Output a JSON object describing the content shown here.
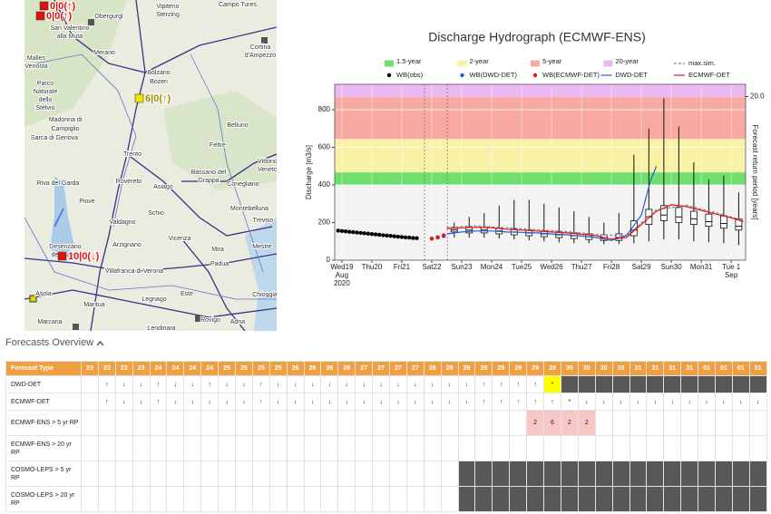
{
  "map": {
    "labels": [
      "Obergurgl",
      "Vipiteno",
      "Sterzing",
      "Campo Tures",
      "San Valentino",
      "alla Muta",
      "Malles",
      "Venosta",
      "Merano",
      "Bolzano",
      "Bozen",
      "Cortina",
      "d'Ampezzo",
      "Parco",
      "Naturale",
      "dello",
      "Stelvio",
      "Madonna di",
      "Campiglio",
      "Sarca di Genova",
      "Trento",
      "Riva del Garda",
      "Rovereto",
      "Asiago",
      "Bassano del",
      "Grappa",
      "Feltre",
      "Belluno",
      "Vittorio",
      "Veneto",
      "Conegliano",
      "Montebelluna",
      "Treviso",
      "Schio",
      "Valdagno",
      "Arzignano",
      "Vicenza",
      "Desenzano",
      "del Garda",
      "Mestre",
      "Mira",
      "Padua",
      "Villafranca di Verona",
      "Mantua",
      "Legnago",
      "Este",
      "Rovigo",
      "Chioggia",
      "Adria",
      "Asola",
      "Marcaria",
      "Lendinara",
      "Piove"
    ],
    "stations": [
      {
        "label": "0|0(↑)",
        "color": "#e01010"
      },
      {
        "label": "0|0(↑)",
        "color": "#e01010"
      },
      {
        "label": "6|0(↑)",
        "color": "#f2e200"
      },
      {
        "label": "10|0(↓)",
        "color": "#e01010"
      }
    ]
  },
  "chart_data": {
    "type": "hydrograph",
    "title": "Discharge Hydrograph (ECMWF-ENS)",
    "y_label": "Discharge [m3/s]",
    "y2_label": "Forecast return period [years]",
    "xlim": [
      18.76,
      32.48
    ],
    "ylim": [
      0,
      935
    ],
    "yticks": [
      0,
      200,
      400,
      600,
      800
    ],
    "return_period_marks": [
      {
        "value": 870,
        "label": "20.0"
      }
    ],
    "grid": true,
    "xticks": [
      {
        "value": 19,
        "label": "Wed19"
      },
      {
        "value": 20,
        "label": "Thu20"
      },
      {
        "value": 21,
        "label": "Fri21"
      },
      {
        "value": 22,
        "label": "Sat22"
      },
      {
        "value": 23,
        "label": "Sun23"
      },
      {
        "value": 24,
        "label": "Mon24"
      },
      {
        "value": 25,
        "label": "Tue25"
      },
      {
        "value": 26,
        "label": "Wed26"
      },
      {
        "value": 27,
        "label": "Thu27"
      },
      {
        "value": 28,
        "label": "Fri28"
      },
      {
        "value": 29,
        "label": "Sat29"
      },
      {
        "value": 30,
        "label": "Sun30"
      },
      {
        "value": 31,
        "label": "Mon31"
      },
      {
        "value": 32,
        "label": "Tue 1"
      }
    ],
    "x_sublabels": {
      "first": [
        "Aug",
        "2020"
      ],
      "last": [
        "Sep"
      ]
    },
    "vlines": [
      21.76,
      22.52
    ],
    "bands": [
      {
        "name": "1.5-year",
        "color": "#6fe06f",
        "from": 400,
        "to": 467
      },
      {
        "name": "2-year",
        "color": "#f9f1a6",
        "from": 467,
        "to": 645
      },
      {
        "name": "5-year",
        "color": "#f8aaa2",
        "from": 645,
        "to": 867
      },
      {
        "name": "20-year",
        "color": "#ebb8f2",
        "from": 867,
        "to": 935
      }
    ],
    "series": [
      {
        "name": "max.sim.",
        "color": "#888888",
        "style": "dashed",
        "x": [
          22.5,
          23.5,
          24.5,
          25.5,
          26.5,
          27.5,
          28.5,
          29.5,
          30.5,
          31.5,
          32.4
        ],
        "values": [
          175,
          182,
          172,
          162,
          152,
          137,
          128,
          268,
          292,
          252,
          212
        ]
      },
      {
        "name": "WB(obs)",
        "color": "#000000",
        "style": "dots",
        "x": [
          18.875,
          19,
          19.125,
          19.25,
          19.375,
          19.5,
          19.625,
          19.75,
          19.875,
          20,
          20.125,
          20.25,
          20.375,
          20.5,
          20.625,
          20.75,
          20.875,
          21,
          21.125,
          21.25,
          21.375,
          21.5
        ],
        "values": [
          157,
          155,
          153,
          151,
          149,
          147,
          145,
          143,
          141,
          139,
          137,
          135,
          133,
          131,
          129,
          127,
          125,
          123,
          121,
          120,
          118,
          117
        ]
      },
      {
        "name": "WB(DWD-DET)",
        "color": "#2a5bd7",
        "style": "dots",
        "x": [
          22.0,
          22.2,
          22.4
        ],
        "values": [
          114,
          120,
          128
        ]
      },
      {
        "name": "WB(ECMWF-DET)",
        "color": "#e01818",
        "style": "dots",
        "x": [
          22.0,
          22.2,
          22.4
        ],
        "values": [
          115,
          122,
          132
        ]
      },
      {
        "name": "DWD-DET",
        "color": "#2a5bd7",
        "style": "line",
        "x": [
          22.5,
          23,
          23.5,
          24,
          24.5,
          25,
          25.5,
          26,
          26.5,
          27,
          27.5,
          28,
          28.5,
          29,
          29.3,
          29.5
        ],
        "values": [
          140,
          150,
          155,
          155,
          150,
          148,
          145,
          140,
          135,
          128,
          120,
          105,
          130,
          240,
          420,
          500
        ]
      },
      {
        "name": "ECMWF-DET",
        "color": "#e01818",
        "style": "line",
        "x": [
          22.5,
          23,
          23.5,
          24,
          24.5,
          25,
          25.5,
          26,
          26.5,
          27,
          27.5,
          28,
          28.5,
          29,
          29.5,
          30,
          30.5,
          31,
          31.5,
          32,
          32.4
        ],
        "values": [
          168,
          172,
          175,
          172,
          165,
          160,
          155,
          150,
          145,
          138,
          130,
          112,
          120,
          190,
          260,
          295,
          285,
          265,
          245,
          225,
          205
        ]
      }
    ],
    "ensemble": {
      "x": [
        22.75,
        23.25,
        23.75,
        24.25,
        24.75,
        25.25,
        25.75,
        26.25,
        26.75,
        27.25,
        27.75,
        28.25,
        28.75,
        29.25,
        29.75,
        30.25,
        30.75,
        31.25,
        31.75,
        32.25
      ],
      "low": [
        120,
        120,
        120,
        115,
        110,
        105,
        100,
        95,
        90,
        90,
        85,
        85,
        90,
        100,
        110,
        110,
        100,
        95,
        90,
        80
      ],
      "q1": [
        150,
        145,
        145,
        140,
        135,
        130,
        125,
        120,
        115,
        110,
        105,
        105,
        130,
        190,
        210,
        200,
        190,
        180,
        170,
        160
      ],
      "median": [
        160,
        160,
        160,
        155,
        150,
        145,
        140,
        135,
        130,
        125,
        120,
        120,
        160,
        230,
        240,
        230,
        220,
        205,
        195,
        180
      ],
      "q3": [
        170,
        175,
        175,
        170,
        165,
        160,
        155,
        150,
        145,
        140,
        135,
        140,
        210,
        270,
        290,
        280,
        260,
        245,
        235,
        220
      ],
      "high": [
        200,
        230,
        250,
        290,
        320,
        320,
        300,
        280,
        260,
        230,
        200,
        250,
        560,
        700,
        860,
        710,
        520,
        430,
        450,
        360
      ]
    }
  },
  "overview": {
    "title": "Forecasts Overview",
    "header_first": "Forecast Type",
    "columns": [
      "23",
      "23",
      "23",
      "23",
      "24",
      "24",
      "24",
      "24",
      "25",
      "25",
      "25",
      "25",
      "26",
      "26",
      "26",
      "26",
      "27",
      "27",
      "27",
      "27",
      "28",
      "28",
      "28",
      "28",
      "29",
      "29",
      "29",
      "29",
      "30",
      "30",
      "30",
      "30",
      "31",
      "31",
      "31",
      "31",
      "01",
      "01",
      "01",
      "01"
    ],
    "rows": [
      {
        "label": "DWD-DET",
        "dark_from": 28,
        "highlight_cols": [
          27
        ],
        "highlight_color": "#ffff00",
        "cells": [
          null,
          "↑",
          "↓",
          "↓",
          "↑",
          "↓",
          "↓",
          "↑",
          "↓",
          "↓",
          "↑",
          "↓",
          "↓",
          "↓",
          "↓",
          "↓",
          "↓",
          "↓",
          "↓",
          "↓",
          "↓",
          "↓",
          "↓",
          "↑",
          "↑",
          "↑",
          "↑",
          "*",
          null,
          null,
          null,
          null,
          null,
          null,
          null,
          null,
          null,
          null,
          null,
          null
        ]
      },
      {
        "label": "ECMWF-DET",
        "cells": [
          null,
          "↑",
          "↓",
          "↓",
          "↑",
          "↓",
          "↓",
          "↓",
          "↓",
          "↓",
          "↑",
          "↓",
          "↓",
          "↓",
          "↓",
          "↓",
          "↓",
          "↓",
          "↓",
          "↓",
          "↓",
          "↓",
          "↓",
          "↑",
          "↑",
          "↑",
          "↑",
          "↑",
          "*",
          "↓",
          "↓",
          "↓",
          "↓",
          "↓",
          "↓",
          "↓",
          "↓",
          "↓",
          "↓",
          "↓"
        ]
      },
      {
        "label": "ECMWF-ENS > 5 yr RP",
        "highlight_cols": [
          26,
          27,
          28,
          29
        ],
        "highlight_color": "#f9c6c6",
        "cells": [
          null,
          null,
          null,
          null,
          null,
          null,
          null,
          null,
          null,
          null,
          null,
          null,
          null,
          null,
          null,
          null,
          null,
          null,
          null,
          null,
          null,
          null,
          null,
          null,
          null,
          null,
          "2",
          "6",
          "2",
          "2",
          null,
          null,
          null,
          null,
          null,
          null,
          null,
          null,
          null,
          null
        ]
      },
      {
        "label": "ECMWF-ENS > 20 yr RP",
        "cells": [
          null,
          null,
          null,
          null,
          null,
          null,
          null,
          null,
          null,
          null,
          null,
          null,
          null,
          null,
          null,
          null,
          null,
          null,
          null,
          null,
          null,
          null,
          null,
          null,
          null,
          null,
          null,
          null,
          null,
          null,
          null,
          null,
          null,
          null,
          null,
          null,
          null,
          null,
          null,
          null
        ]
      },
      {
        "label": "COSMO-LEPS > 5 yr RP",
        "dark_from": 22,
        "cells": [
          null,
          null,
          null,
          null,
          null,
          null,
          null,
          null,
          null,
          null,
          null,
          null,
          null,
          null,
          null,
          null,
          null,
          null,
          null,
          null,
          null,
          null,
          null,
          null,
          null,
          null,
          null,
          null,
          null,
          null,
          null,
          null,
          null,
          null,
          null,
          null,
          null,
          null,
          null,
          null
        ]
      },
      {
        "label": "COSMO-LEPS > 20 yr RP",
        "dark_from": 22,
        "cells": [
          null,
          null,
          null,
          null,
          null,
          null,
          null,
          null,
          null,
          null,
          null,
          null,
          null,
          null,
          null,
          null,
          null,
          null,
          null,
          null,
          null,
          null,
          null,
          null,
          null,
          null,
          null,
          null,
          null,
          null,
          null,
          null,
          null,
          null,
          null,
          null,
          null,
          null,
          null,
          null
        ]
      }
    ]
  }
}
